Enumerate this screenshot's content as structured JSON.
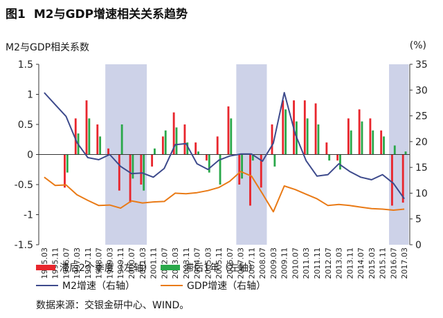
{
  "figure": {
    "number": "图1",
    "title": "M2与GDP增速相关关系趋势",
    "left_axis_label": "M2与GDP相关系数",
    "right_axis_label": "(%)",
    "source": "数据来源：交银金研中心、WIND。"
  },
  "legend": {
    "lag2q": "滞后2个季度（左轴）",
    "lag1y": "滞后1年（左轴）",
    "m2": "M2增速（右轴）",
    "gdp": "GDP增速（右轴）"
  },
  "chart_data": {
    "type": "bar",
    "title": "M2与GDP增速相关关系趋势",
    "ylabel_left": "M2与GDP相关系数",
    "ylabel_right": "(%)",
    "ylim_left": [
      -1.5,
      1.5
    ],
    "ylim_right": [
      0,
      35
    ],
    "left_ticks": [
      "1.5",
      "1",
      "0.5",
      "0",
      "-0.5",
      "-1",
      "-1.5"
    ],
    "left_tick_values": [
      1.5,
      1,
      0.5,
      0,
      -0.5,
      -1,
      -1.5
    ],
    "right_ticks": [
      "35",
      "30",
      "25",
      "20",
      "15",
      "10",
      "5",
      "0"
    ],
    "right_tick_values": [
      35,
      30,
      25,
      20,
      15,
      10,
      5,
      0
    ],
    "categories": [
      "1995.03",
      "1995.11",
      "1996.07",
      "1997.03",
      "1997.11",
      "1998.07",
      "1999.03",
      "1999.11",
      "2000.07",
      "2001.03",
      "2001.11",
      "2002.07",
      "2003.03",
      "2003.11",
      "2004.07",
      "2005.03",
      "2005.11",
      "2006.07",
      "2007.03",
      "2007.11",
      "2008.07",
      "2009.03",
      "2009.11",
      "2010.07",
      "2011.03",
      "2011.11",
      "2012.07",
      "2013.03",
      "2013.11",
      "2014.07",
      "2015.03",
      "2015.11",
      "2016.07",
      "2017.03"
    ],
    "shaded_periods": [
      [
        "1999.03",
        "2001.03"
      ],
      [
        "2007.03",
        "2008.07"
      ],
      [
        "2016.07",
        "2017.03"
      ]
    ],
    "colors": {
      "lag2q": "#e8262d",
      "lag1y": "#2aa84a",
      "m2": "#3d4a8c",
      "gdp": "#e97a16",
      "shade": "#cdd2e8"
    },
    "series": [
      {
        "name": "滞后2个季度（左轴）",
        "axis": "left",
        "values": [
          0,
          0,
          -0.55,
          0.6,
          0.9,
          0.5,
          0.1,
          -0.6,
          -0.8,
          -0.5,
          -0.2,
          0.3,
          0.7,
          0.5,
          0.2,
          -0.1,
          0.3,
          0.8,
          -0.5,
          -0.85,
          -0.55,
          0.5,
          0.9,
          0.9,
          0.9,
          0.85,
          0.2,
          -0.1,
          0.6,
          0.75,
          0.6,
          0.4,
          -0.85,
          -0.8
        ]
      },
      {
        "name": "滞后1年（左轴）",
        "axis": "left",
        "values": [
          0,
          0,
          -0.3,
          0.35,
          0.6,
          0.3,
          0.0,
          0.5,
          -0.4,
          -0.6,
          0.1,
          0.4,
          0.45,
          0.2,
          0.05,
          -0.3,
          -0.5,
          0.6,
          -0.4,
          -0.1,
          0.0,
          -0.2,
          0.75,
          0.55,
          0.6,
          0.5,
          -0.1,
          -0.25,
          0.4,
          0.55,
          0.4,
          0.3,
          0.15,
          0.05
        ]
      },
      {
        "name": "M2增速（右轴）",
        "axis": "right",
        "values": [
          29.5,
          27.2,
          24.9,
          19.8,
          16.9,
          16.5,
          17.5,
          15.2,
          13.8,
          13.9,
          13.1,
          14.8,
          19.4,
          19.6,
          15.7,
          14.6,
          16.4,
          17.2,
          17.6,
          17.6,
          16.2,
          19.7,
          29.5,
          21.5,
          16.3,
          13.3,
          13.6,
          15.7,
          14.2,
          13.1,
          12.6,
          13.6,
          11.9,
          8.9
        ]
      },
      {
        "name": "GDP增速（右轴）",
        "axis": "right",
        "values": [
          13.1,
          11.5,
          11.6,
          9.7,
          8.6,
          7.6,
          7.7,
          7.1,
          8.5,
          8.1,
          8.3,
          8.4,
          10.0,
          9.9,
          10.1,
          10.5,
          11.1,
          12.3,
          14.2,
          13.3,
          9.9,
          6.4,
          11.4,
          10.7,
          9.8,
          8.9,
          7.6,
          7.8,
          7.6,
          7.3,
          7.0,
          6.9,
          6.7,
          6.9
        ]
      }
    ]
  }
}
